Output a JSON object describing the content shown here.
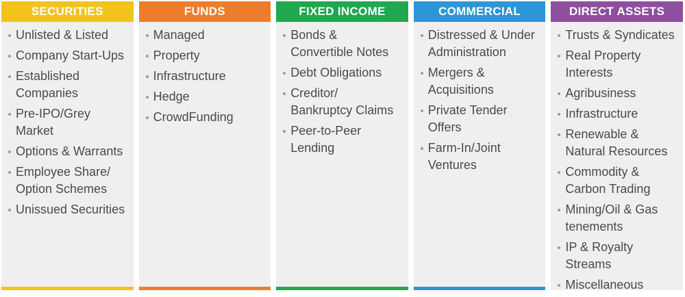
{
  "columns": [
    {
      "title": "SECURITIES",
      "color": "#f2c31b",
      "items": [
        "Unlisted & Listed",
        "Company Start-Ups",
        "Established Companies",
        "Pre-IPO/Grey Market",
        "Options & Warrants",
        "Employee Share/ Option Schemes",
        "Unissued Securities"
      ]
    },
    {
      "title": "FUNDS",
      "color": "#ee7d2b",
      "items": [
        "Managed",
        "Property",
        "Infrastructure",
        "Hedge",
        "CrowdFunding"
      ]
    },
    {
      "title": "FIXED INCOME",
      "color": "#1fa84f",
      "items": [
        "Bonds & Convertible Notes",
        "Debt Obligations",
        "Creditor/ Bankruptcy Claims",
        "Peer-to-Peer Lending"
      ]
    },
    {
      "title": "COMMERCIAL",
      "color": "#2b97d6",
      "items": [
        "Distressed & Under Administration",
        "Mergers & Acquisitions",
        "Private Tender Offers",
        "Farm-In/Joint Ventures"
      ]
    },
    {
      "title": "DIRECT ASSETS",
      "color": "#8e4f9e",
      "items": [
        "Trusts & Syndicates",
        "Real Property Interests",
        "Agribusiness",
        "Infrastructure",
        "Renewable & Natural Resources",
        "Commodity & Carbon Trading",
        "Mining/Oil & Gas tenements",
        "IP & Royalty Streams",
        "Miscellaneous"
      ]
    }
  ]
}
